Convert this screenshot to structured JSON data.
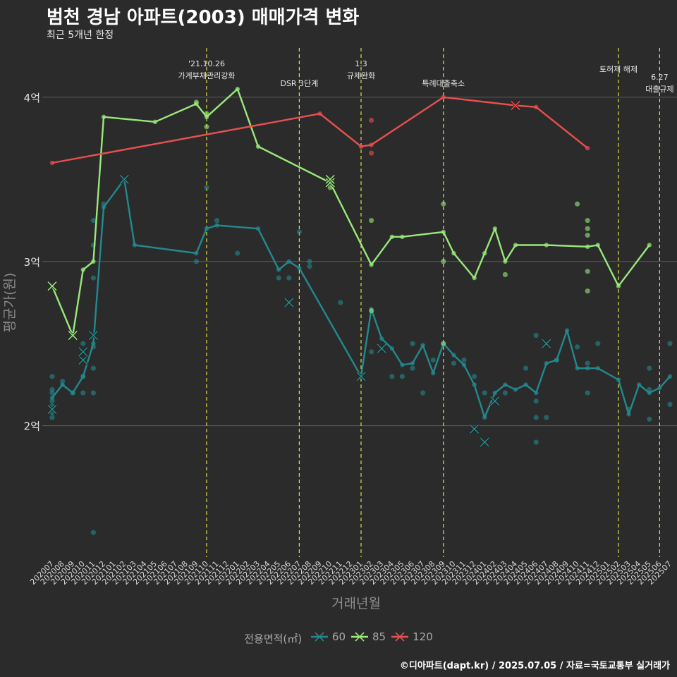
{
  "title": "범천 경남 아파트(2003) 매매가격 변화",
  "subtitle": "최근 5개년 한정",
  "caption": "©디아파트(dapt.kr) / 2025.07.05 / 자료=국토교통부 실거래가",
  "chart_data": {
    "type": "line",
    "xlabel": "거래년월",
    "ylabel": "평균가(원)",
    "x_start": "202007",
    "x_end": "202507",
    "ylim": [
      1.2,
      4.3
    ],
    "y_ticks": [
      {
        "value": 2,
        "label": "2억"
      },
      {
        "value": 3,
        "label": "3억"
      },
      {
        "value": 4,
        "label": "4억"
      }
    ],
    "categories": [
      "202007",
      "202008",
      "202009",
      "202010",
      "202011",
      "202012",
      "202101",
      "202102",
      "202103",
      "202104",
      "202105",
      "202106",
      "202107",
      "202108",
      "202109",
      "202110",
      "202111",
      "202112",
      "202201",
      "202202",
      "202203",
      "202204",
      "202205",
      "202206",
      "202207",
      "202208",
      "202209",
      "202210",
      "202211",
      "202212",
      "202301",
      "202302",
      "202303",
      "202304",
      "202305",
      "202306",
      "202307",
      "202308",
      "202309",
      "202310",
      "202311",
      "202312",
      "202401",
      "202402",
      "202403",
      "202404",
      "202405",
      "202406",
      "202407",
      "202408",
      "202409",
      "202410",
      "202411",
      "202412",
      "202501",
      "202502",
      "202503",
      "202504",
      "202505",
      "202506",
      "202507"
    ],
    "legend_title": "전용면적(㎡)",
    "series": [
      {
        "name": "60",
        "color": "#23898e",
        "line": [
          [
            0,
            2.17
          ],
          [
            1,
            2.25
          ],
          [
            2,
            2.2
          ],
          [
            3,
            2.3
          ],
          [
            4,
            2.5
          ],
          [
            5,
            3.33
          ],
          [
            7,
            3.5
          ],
          [
            8,
            3.1
          ],
          [
            14,
            3.05
          ],
          [
            15,
            3.2
          ],
          [
            16,
            3.22
          ],
          [
            20,
            3.2
          ],
          [
            22,
            2.95
          ],
          [
            23,
            3.0
          ],
          [
            24,
            2.96
          ],
          [
            30,
            2.3
          ],
          [
            31,
            2.71
          ],
          [
            32,
            2.53
          ],
          [
            33,
            2.47
          ],
          [
            34,
            2.37
          ],
          [
            35,
            2.38
          ],
          [
            36,
            2.49
          ],
          [
            37,
            2.32
          ],
          [
            38,
            2.5
          ],
          [
            39,
            2.43
          ],
          [
            40,
            2.37
          ],
          [
            41,
            2.25
          ],
          [
            42,
            2.05
          ],
          [
            43,
            2.2
          ],
          [
            44,
            2.25
          ],
          [
            45,
            2.22
          ],
          [
            46,
            2.25
          ],
          [
            47,
            2.2
          ],
          [
            48,
            2.38
          ],
          [
            49,
            2.4
          ],
          [
            50,
            2.58
          ],
          [
            51,
            2.35
          ],
          [
            52,
            2.35
          ],
          [
            53,
            2.35
          ],
          [
            55,
            2.28
          ],
          [
            56,
            2.07
          ],
          [
            57,
            2.25
          ],
          [
            58,
            2.2
          ],
          [
            59,
            2.23
          ],
          [
            60,
            2.3
          ]
        ],
        "points": [
          [
            0,
            2.05
          ],
          [
            0,
            2.08
          ],
          [
            0,
            2.12
          ],
          [
            0,
            2.15
          ],
          [
            0,
            2.2
          ],
          [
            0,
            2.22
          ],
          [
            0,
            2.3
          ],
          [
            1,
            2.27
          ],
          [
            2,
            2.2
          ],
          [
            3,
            2.2
          ],
          [
            3,
            2.3
          ],
          [
            3,
            2.5
          ],
          [
            4,
            2.2
          ],
          [
            4,
            2.35
          ],
          [
            4,
            2.48
          ],
          [
            4,
            2.9
          ],
          [
            4,
            3.1
          ],
          [
            4,
            3.25
          ],
          [
            4,
            1.35
          ],
          [
            5,
            3.35
          ],
          [
            14,
            3.0
          ],
          [
            16,
            3.25
          ],
          [
            18,
            3.05
          ],
          [
            15,
            3.45
          ],
          [
            22,
            2.9
          ],
          [
            23,
            2.9
          ],
          [
            24,
            3.18
          ],
          [
            25,
            2.97
          ],
          [
            25,
            3.0
          ],
          [
            28,
            2.75
          ],
          [
            31,
            2.45
          ],
          [
            33,
            2.3
          ],
          [
            34,
            2.3
          ],
          [
            35,
            2.35
          ],
          [
            35,
            2.5
          ],
          [
            36,
            2.2
          ],
          [
            37,
            2.4
          ],
          [
            39,
            2.38
          ],
          [
            40,
            2.4
          ],
          [
            41,
            2.3
          ],
          [
            42,
            2.2
          ],
          [
            44,
            2.2
          ],
          [
            46,
            2.35
          ],
          [
            47,
            2.55
          ],
          [
            47,
            2.05
          ],
          [
            47,
            2.15
          ],
          [
            47,
            1.9
          ],
          [
            48,
            2.05
          ],
          [
            49,
            2.4
          ],
          [
            51,
            2.48
          ],
          [
            52,
            2.2
          ],
          [
            52,
            2.38
          ],
          [
            53,
            2.5
          ],
          [
            56,
            2.1
          ],
          [
            58,
            2.35
          ],
          [
            58,
            2.04
          ],
          [
            58,
            2.22
          ],
          [
            60,
            2.13
          ],
          [
            60,
            2.5
          ]
        ],
        "crosses": [
          [
            0,
            2.1
          ],
          [
            3,
            2.4
          ],
          [
            3,
            2.45
          ],
          [
            4,
            2.55
          ],
          [
            7,
            3.5
          ],
          [
            23,
            2.75
          ],
          [
            30,
            2.3
          ],
          [
            32,
            2.47
          ],
          [
            41,
            1.98
          ],
          [
            42,
            1.9
          ],
          [
            43,
            2.15
          ],
          [
            48,
            2.5
          ]
        ]
      },
      {
        "name": "85",
        "color": "#98e97a",
        "line": [
          [
            0,
            2.85
          ],
          [
            2,
            2.55
          ],
          [
            3,
            2.95
          ],
          [
            4,
            3.0
          ],
          [
            5,
            3.88
          ],
          [
            10,
            3.85
          ],
          [
            14,
            3.96
          ],
          [
            15,
            3.88
          ],
          [
            18,
            4.05
          ],
          [
            20,
            3.7
          ],
          [
            27,
            3.48
          ],
          [
            31,
            2.98
          ],
          [
            33,
            3.15
          ],
          [
            34,
            3.15
          ],
          [
            38,
            3.18
          ],
          [
            39,
            3.05
          ],
          [
            41,
            2.9
          ],
          [
            42,
            3.05
          ],
          [
            43,
            3.2
          ],
          [
            44,
            3.0
          ],
          [
            45,
            3.1
          ],
          [
            48,
            3.1
          ],
          [
            52,
            3.09
          ],
          [
            53,
            3.1
          ],
          [
            55,
            2.85
          ],
          [
            58,
            3.1
          ]
        ],
        "points": [
          [
            14,
            3.97
          ],
          [
            15,
            3.82
          ],
          [
            15,
            3.9
          ],
          [
            27,
            3.45
          ],
          [
            31,
            3.25
          ],
          [
            31,
            2.7
          ],
          [
            38,
            3.35
          ],
          [
            38,
            3.0
          ],
          [
            38,
            2.5
          ],
          [
            44,
            2.92
          ],
          [
            52,
            3.25
          ],
          [
            52,
            3.2
          ],
          [
            52,
            3.16
          ],
          [
            52,
            2.94
          ],
          [
            52,
            2.82
          ],
          [
            51,
            3.35
          ]
        ],
        "crosses": [
          [
            0,
            2.85
          ],
          [
            2,
            2.55
          ],
          [
            27,
            3.48
          ],
          [
            27,
            3.5
          ]
        ]
      },
      {
        "name": "120",
        "color": "#e8504f",
        "line": [
          [
            0,
            3.6
          ],
          [
            26,
            3.9
          ],
          [
            30,
            3.7
          ],
          [
            31,
            3.71
          ],
          [
            38,
            4.0
          ],
          [
            45,
            3.95
          ],
          [
            47,
            3.94
          ],
          [
            52,
            3.69
          ]
        ],
        "points": [
          [
            31,
            3.86
          ],
          [
            31,
            3.66
          ]
        ],
        "crosses": [
          [
            45,
            3.95
          ]
        ]
      }
    ],
    "annotations": [
      {
        "x": 15,
        "lines": [
          "'21.10.26",
          "가계부채관리강화"
        ]
      },
      {
        "x": 24,
        "lines": [
          "DSR 3단계"
        ]
      },
      {
        "x": 30,
        "lines": [
          "1.3",
          "규제완화"
        ]
      },
      {
        "x": 38,
        "lines": [
          "특례대출축소"
        ]
      },
      {
        "x": 55,
        "lines": [
          "토허제 해제"
        ]
      },
      {
        "x": 59,
        "lines": [
          "6.27",
          "대출규제"
        ]
      }
    ]
  }
}
